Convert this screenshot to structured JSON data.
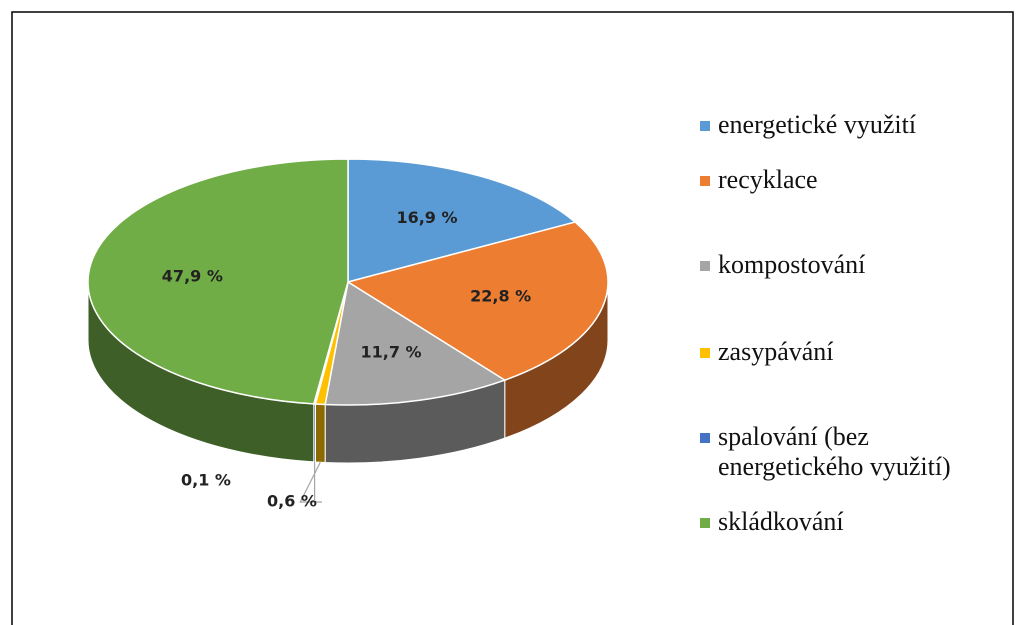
{
  "chart_data": {
    "type": "pie",
    "three_d": true,
    "categories": [
      "energetické využití",
      "recyklace",
      "kompostování",
      "zasypávání",
      "spalování (bez energetického využití)",
      "skládkování"
    ],
    "values": [
      16.9,
      22.8,
      11.7,
      0.6,
      0.1,
      47.9
    ],
    "value_labels": [
      "16,9 %",
      "22,8 %",
      "11,7 %",
      "0,6 %",
      "0,1 %",
      "47,9 %"
    ],
    "colors": [
      "#5b9bd5",
      "#ed7d31",
      "#a5a5a5",
      "#ffc000",
      "#4472c4",
      "#70ad47"
    ],
    "legend": "right"
  }
}
